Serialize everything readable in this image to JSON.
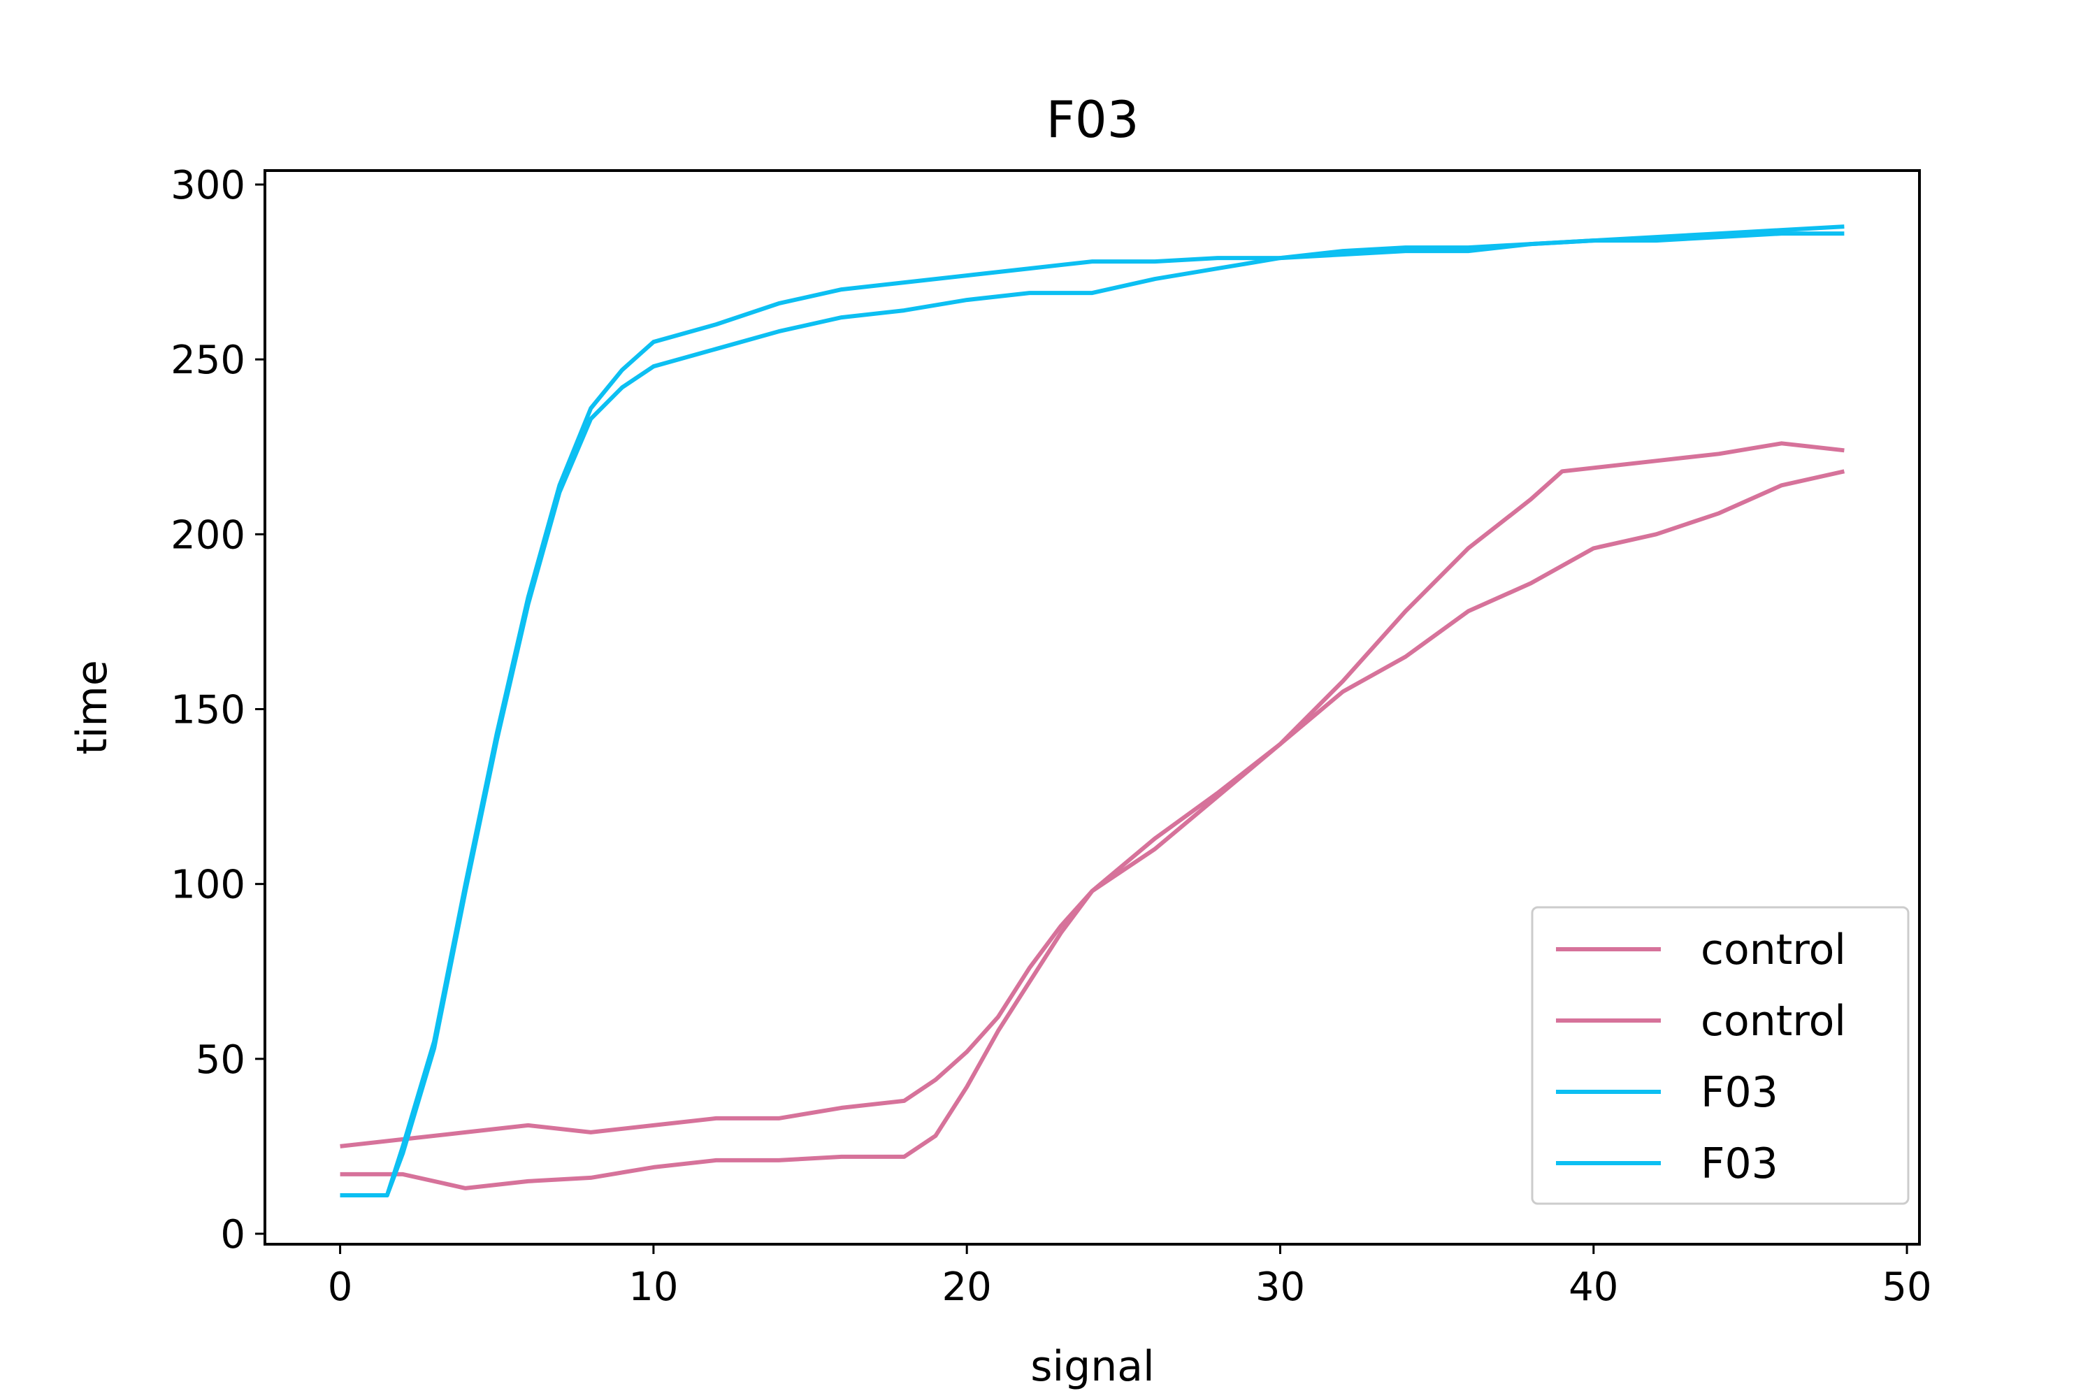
{
  "chart_data": {
    "type": "line",
    "title": "F03",
    "xlabel": "signal",
    "ylabel": "time",
    "xlim": [
      -2.4,
      50.4
    ],
    "ylim": [
      -3,
      304
    ],
    "xticks": [
      0,
      10,
      20,
      30,
      40,
      50
    ],
    "yticks": [
      0,
      50,
      100,
      150,
      200,
      250,
      300
    ],
    "xtick_labels": [
      "0",
      "10",
      "20",
      "30",
      "40",
      "50"
    ],
    "ytick_labels": [
      "0",
      "50",
      "100",
      "150",
      "200",
      "250",
      "300"
    ],
    "grid": false,
    "legend_position": "lower right",
    "series": [
      {
        "name": "control",
        "color": "#d6729a",
        "x": [
          0,
          2,
          4,
          6,
          8,
          10,
          12,
          14,
          16,
          18,
          19,
          20,
          21,
          22,
          23,
          24,
          26,
          28,
          30,
          32,
          34,
          36,
          38,
          39,
          40,
          42,
          44,
          46,
          48
        ],
        "y": [
          25,
          27,
          29,
          31,
          29,
          31,
          33,
          33,
          36,
          38,
          44,
          52,
          62,
          76,
          88,
          98,
          110,
          125,
          140,
          158,
          178,
          196,
          210,
          218,
          219,
          221,
          223,
          226,
          224
        ]
      },
      {
        "name": "control",
        "color": "#d6729a",
        "x": [
          0,
          2,
          4,
          6,
          8,
          10,
          12,
          14,
          16,
          18,
          19,
          20,
          21,
          22,
          23,
          24,
          26,
          28,
          30,
          32,
          34,
          36,
          38,
          40,
          42,
          44,
          46,
          48
        ],
        "y": [
          17,
          17,
          13,
          15,
          16,
          19,
          21,
          21,
          22,
          22,
          28,
          42,
          58,
          72,
          86,
          98,
          113,
          126,
          140,
          155,
          165,
          178,
          186,
          196,
          200,
          206,
          214,
          218
        ]
      },
      {
        "name": "F03",
        "color": "#0cbff2",
        "x": [
          0,
          1.5,
          2,
          3,
          4,
          5,
          6,
          7,
          8,
          9,
          10,
          12,
          14,
          16,
          18,
          20,
          22,
          24,
          26,
          28,
          30,
          32,
          34,
          36,
          38,
          40,
          42,
          44,
          46,
          48
        ],
        "y": [
          11,
          11,
          25,
          55,
          100,
          143,
          182,
          214,
          236,
          247,
          255,
          260,
          266,
          270,
          272,
          274,
          276,
          278,
          278,
          279,
          279,
          280,
          281,
          281,
          283,
          284,
          285,
          286,
          287,
          288
        ]
      },
      {
        "name": "F03",
        "color": "#0cbff2",
        "x": [
          0,
          1.5,
          2,
          3,
          4,
          5,
          6,
          7,
          8,
          9,
          10,
          12,
          14,
          16,
          18,
          20,
          22,
          24,
          26,
          28,
          30,
          32,
          34,
          36,
          38,
          40,
          42,
          44,
          46,
          48
        ],
        "y": [
          11,
          11,
          23,
          53,
          98,
          141,
          180,
          212,
          233,
          242,
          248,
          253,
          258,
          262,
          264,
          267,
          269,
          269,
          273,
          276,
          279,
          281,
          282,
          282,
          283,
          284,
          284,
          285,
          286,
          286
        ]
      }
    ]
  }
}
